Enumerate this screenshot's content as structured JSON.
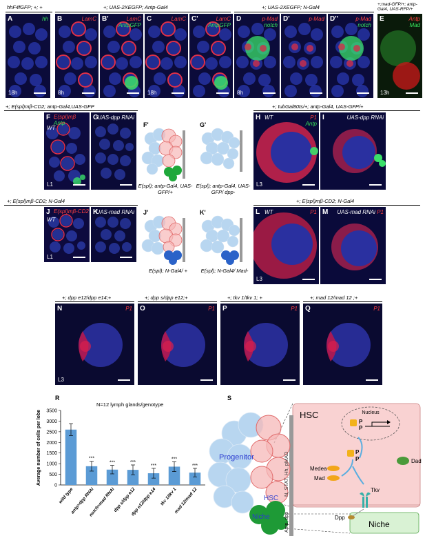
{
  "row1": {
    "geno_a": "hhF4fGFP; +; +",
    "geno_b": "+; UAS-2XEGFP; Antp-Gal4",
    "geno_d": "+; UAS-2XEGFP; N-Gal4",
    "geno_e": "+;mad-GFP/+; antp-Gal4, UAS-RFP/+",
    "panels": [
      {
        "letter": "A",
        "green": "hh",
        "red": "",
        "time": "18h"
      },
      {
        "letter": "B",
        "green": "",
        "red": "LamC",
        "time": "8h"
      },
      {
        "letter": "B'",
        "green": "AntpGFP",
        "red": "LamC",
        "time": ""
      },
      {
        "letter": "C",
        "green": "",
        "red": "LamC",
        "time": "18h"
      },
      {
        "letter": "C'",
        "green": "AntpGFP",
        "red": "LamC",
        "time": ""
      },
      {
        "letter": "D",
        "green": "notch",
        "red": "p-Mad",
        "time": "8h"
      },
      {
        "letter": "D'",
        "green": "",
        "red": "p-Mad",
        "time": ""
      },
      {
        "letter": "D''",
        "green": "notch",
        "red": "p-Mad",
        "time": ""
      },
      {
        "letter": "E",
        "green": "Mad",
        "red": "Antp",
        "time": "13h"
      }
    ]
  },
  "row2": {
    "geno_fg": "+; E(spl)mβ-CD2; antp-Gal4,UAS-GFP",
    "geno_hi": "+; tubGal80ts/+; antp-Gal4, UAS-GFP/+",
    "F": {
      "letter": "F",
      "wt": "WT",
      "red": "E(spl)mβ",
      "green": "Antp",
      "stage": "L1"
    },
    "G": {
      "letter": "G",
      "label": "UAS-dpp RNAi"
    },
    "F2": {
      "letter": "F'",
      "caption": "E(spl); antp-Gal4, UAS-GFP/+"
    },
    "G2": {
      "letter": "G'",
      "caption": "E(spl); antp-Gal4, UAS-GFP/ dpp-"
    },
    "H": {
      "letter": "H",
      "wt": "WT",
      "red": "P1",
      "green": "Antp",
      "stage": "L3"
    },
    "I": {
      "letter": "I",
      "label": "UAS-dpp RNAi"
    }
  },
  "row3": {
    "geno_jk": "+; E(spl)mβ-CD2; N-Gal4",
    "geno_lm": "+; E(spl)mβ-CD2; N-Gal4",
    "J": {
      "letter": "J",
      "wt": "WT",
      "red": "E(spl)mβ-CD2",
      "stage": "L1"
    },
    "K": {
      "letter": "K",
      "label": "UAS-mad RNAi"
    },
    "J2": {
      "letter": "J'",
      "caption": "E(spl); N-Gal4/ +"
    },
    "K2": {
      "letter": "K'",
      "caption": "E(spl); N-Gal4/ Mad-"
    },
    "L": {
      "letter": "L",
      "wt": "WT",
      "red": "P1",
      "stage": "L3"
    },
    "M": {
      "letter": "M",
      "label": "UAS-mad RNAi",
      "red": "P1"
    }
  },
  "row4": {
    "panels": [
      {
        "letter": "N",
        "geno": "+; dpp e12/dpp e14;+",
        "red": "P1",
        "stage": "L3"
      },
      {
        "letter": "O",
        "geno": "+; dpp s/dpp e12;+",
        "red": "P1",
        "stage": ""
      },
      {
        "letter": "P",
        "geno": "+; tkv 1/tkv 1; +",
        "red": "P1",
        "stage": ""
      },
      {
        "letter": "Q",
        "geno": "+; mad 12/mad 12 ;+",
        "red": "P1",
        "stage": ""
      }
    ]
  },
  "R": {
    "letter": "R",
    "chart_data": {
      "type": "bar",
      "title": "N=12 lymph glands/genotype",
      "ylabel": "Average number of cells per lobe",
      "xlabel": "",
      "ylim": [
        0,
        3500
      ],
      "yticks": [
        0,
        500,
        1000,
        1500,
        2000,
        2500,
        3000,
        3500
      ],
      "categories": [
        "wild type",
        "antp>dpp RNAi",
        "notch>mad RNAi",
        "dpp s/dpp e12",
        "dpp e12/dpp e14",
        "tkv 1/tkv 1",
        "mad 12/mad 12"
      ],
      "values": [
        2600,
        880,
        720,
        710,
        550,
        860,
        580
      ],
      "errors": [
        280,
        230,
        200,
        230,
        230,
        230,
        200
      ],
      "significance": [
        "",
        "***",
        "***",
        "***",
        "***",
        "***",
        "***"
      ],
      "bar_color": "#5b9bd5"
    }
  },
  "S": {
    "letter": "S",
    "progenitor": "Progenitor",
    "hsc": "HSC",
    "niche": "Niche",
    "niche_markers": "Antp, dpp",
    "hsc_markers": "N, STAT, Hh, pMAD",
    "zoom_hsc": "HSC",
    "nucleus": "Nucleus",
    "p1": "P",
    "p2": "P",
    "p3": "P",
    "p4": "P",
    "medea": "Medea",
    "mad": "Mad",
    "tkv": "Tkv",
    "dpp": "Dpp",
    "dad": "Dad",
    "zoom_niche": "Niche"
  }
}
